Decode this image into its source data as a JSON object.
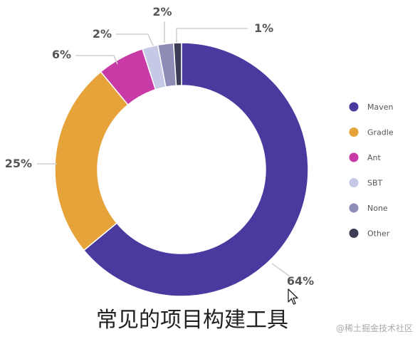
{
  "chart_data": {
    "type": "pie",
    "donut": true,
    "categories": [
      "Maven",
      "Gradle",
      "Ant",
      "SBT",
      "None",
      "Other"
    ],
    "values": [
      64,
      25,
      6,
      2,
      2,
      1
    ],
    "labels": [
      "64%",
      "25%",
      "6%",
      "2%",
      "2%",
      "1%"
    ],
    "colors": [
      "#4a3a9f",
      "#e6a33a",
      "#c83aa6",
      "#c5c9e6",
      "#8d8db8",
      "#3d3d55"
    ],
    "legend_position": "right",
    "title": ""
  },
  "caption": "常见的项目构建工具",
  "watermark": "@稀土掘金技术社区",
  "cursor_icon": "mouse-pointer-icon"
}
